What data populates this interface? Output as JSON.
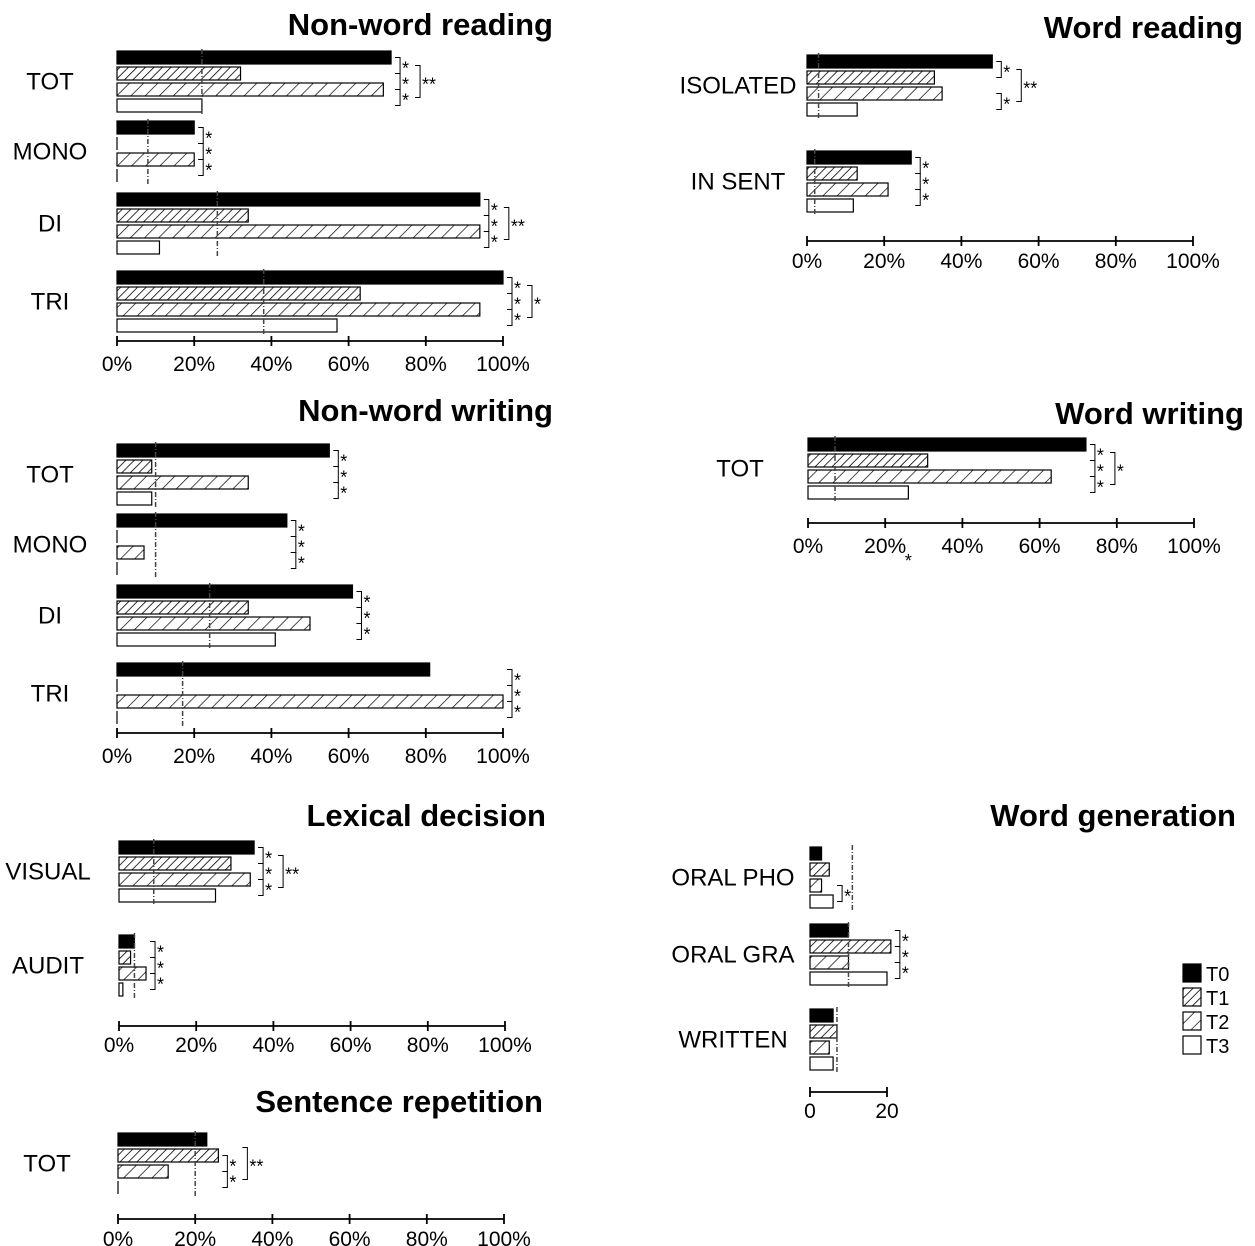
{
  "chart_data": [
    {
      "type": "bar",
      "title": "Non-word reading",
      "categories": [
        "TOT",
        "MONO",
        "DI",
        "TRI"
      ],
      "series": [
        {
          "name": "T0",
          "values": [
            71,
            20,
            94,
            100
          ]
        },
        {
          "name": "T1",
          "values": [
            32,
            0,
            34,
            63
          ]
        },
        {
          "name": "T2",
          "values": [
            69,
            20,
            94,
            94
          ]
        },
        {
          "name": "T3",
          "values": [
            22,
            0,
            11,
            57
          ]
        }
      ],
      "reference": [
        22,
        8,
        26,
        38
      ],
      "xticks": [
        "0%",
        "20%",
        "40%",
        "60%",
        "80%",
        "100%"
      ],
      "xlim": [
        0,
        100
      ],
      "sig": [
        [
          "*",
          "*",
          "*"
        ],
        [
          "*",
          "*",
          "*"
        ],
        [
          "*",
          "*",
          "*"
        ],
        [
          "*",
          "*",
          "*"
        ]
      ],
      "sig_outer": [
        "**",
        "",
        "**",
        "*"
      ]
    },
    {
      "type": "bar",
      "title": "Word reading",
      "categories": [
        "ISOLATED",
        "IN SENT"
      ],
      "series": [
        {
          "name": "T0",
          "values": [
            48,
            27
          ]
        },
        {
          "name": "T1",
          "values": [
            33,
            13
          ]
        },
        {
          "name": "T2",
          "values": [
            35,
            21
          ]
        },
        {
          "name": "T3",
          "values": [
            13,
            12
          ]
        }
      ],
      "reference": [
        3,
        2
      ],
      "xticks": [
        "0%",
        "20%",
        "40%",
        "60%",
        "80%",
        "100%"
      ],
      "xlim": [
        0,
        100
      ],
      "sig": [
        [
          "*",
          "",
          "*"
        ],
        [
          "*",
          "*",
          "*"
        ]
      ],
      "sig_outer": [
        "**",
        ""
      ]
    },
    {
      "type": "bar",
      "title": "Non-word writing",
      "categories": [
        "TOT",
        "MONO",
        "DI",
        "TRI"
      ],
      "series": [
        {
          "name": "T0",
          "values": [
            55,
            44,
            61,
            81
          ]
        },
        {
          "name": "T1",
          "values": [
            9,
            0,
            34,
            0
          ]
        },
        {
          "name": "T2",
          "values": [
            34,
            7,
            50,
            100
          ]
        },
        {
          "name": "T3",
          "values": [
            9,
            0,
            41,
            0
          ]
        }
      ],
      "reference": [
        10,
        10,
        24,
        17
      ],
      "xticks": [
        "0%",
        "20%",
        "40%",
        "60%",
        "80%",
        "100%"
      ],
      "xlim": [
        0,
        100
      ],
      "sig": [
        [
          "*",
          "*",
          "*"
        ],
        [
          "*",
          "*",
          "*"
        ],
        [
          "*",
          "*",
          "*"
        ],
        [
          "*",
          "*",
          "*"
        ]
      ],
      "sig_outer": [
        "",
        "",
        "",
        ""
      ]
    },
    {
      "type": "bar",
      "title": "Word writing",
      "categories": [
        "TOT"
      ],
      "series": [
        {
          "name": "T0",
          "values": [
            72
          ]
        },
        {
          "name": "T1",
          "values": [
            31
          ]
        },
        {
          "name": "T2",
          "values": [
            63
          ]
        },
        {
          "name": "T3",
          "values": [
            26
          ]
        }
      ],
      "reference": [
        7
      ],
      "xticks": [
        "0%",
        "20%",
        "40%",
        "60%",
        "80%",
        "100%"
      ],
      "xlim": [
        0,
        100
      ],
      "sig": [
        [
          "*",
          "*",
          "*"
        ]
      ],
      "sig_outer": [
        "*"
      ],
      "axis_star": "*"
    },
    {
      "type": "bar",
      "title": "Lexical decision",
      "categories": [
        "VISUAL",
        "AUDIT"
      ],
      "series": [
        {
          "name": "T0",
          "values": [
            35,
            4
          ]
        },
        {
          "name": "T1",
          "values": [
            29,
            3
          ]
        },
        {
          "name": "T2",
          "values": [
            34,
            7
          ]
        },
        {
          "name": "T3",
          "values": [
            25,
            1
          ]
        }
      ],
      "reference": [
        9,
        4
      ],
      "xticks": [
        "0%",
        "20%",
        "40%",
        "60%",
        "80%",
        "100%"
      ],
      "xlim": [
        0,
        100
      ],
      "sig": [
        [
          "*",
          "*",
          "*"
        ],
        [
          "*",
          "*",
          "*"
        ]
      ],
      "sig_outer": [
        "**",
        ""
      ]
    },
    {
      "type": "bar",
      "title": "Word generation",
      "categories": [
        "ORAL PHO",
        "ORAL GRA",
        "WRITTEN"
      ],
      "series": [
        {
          "name": "T0",
          "values": [
            3,
            10,
            6
          ]
        },
        {
          "name": "T1",
          "values": [
            5,
            21,
            7
          ]
        },
        {
          "name": "T2",
          "values": [
            3,
            10,
            5
          ]
        },
        {
          "name": "T3",
          "values": [
            6,
            20,
            6
          ]
        }
      ],
      "reference": [
        11,
        10,
        7
      ],
      "xticks": [
        "0",
        "20"
      ],
      "xlim": [
        0,
        20
      ],
      "sig": [
        [
          "",
          "",
          "*"
        ],
        [
          "*",
          "*",
          "*"
        ],
        [
          "",
          "",
          ""
        ]
      ],
      "sig_outer": [
        "",
        "",
        ""
      ]
    },
    {
      "type": "bar",
      "title": "Sentence repetition",
      "categories": [
        "TOT"
      ],
      "series": [
        {
          "name": "T0",
          "values": [
            23
          ]
        },
        {
          "name": "T1",
          "values": [
            26
          ]
        },
        {
          "name": "T2",
          "values": [
            13
          ]
        },
        {
          "name": "T3",
          "values": [
            0
          ]
        }
      ],
      "reference": [
        20
      ],
      "xticks": [
        "0%",
        "20%",
        "40%",
        "60%",
        "80%",
        "100%"
      ],
      "xlim": [
        0,
        100
      ],
      "sig": [
        [
          "",
          "*",
          "*"
        ]
      ],
      "sig_outer": [
        "**"
      ]
    }
  ],
  "legend": {
    "items": [
      {
        "label": "T0",
        "pattern": "solid"
      },
      {
        "label": "T1",
        "pattern": "dense-hatch"
      },
      {
        "label": "T2",
        "pattern": "sparse-hatch"
      },
      {
        "label": "T3",
        "pattern": "empty"
      }
    ]
  }
}
